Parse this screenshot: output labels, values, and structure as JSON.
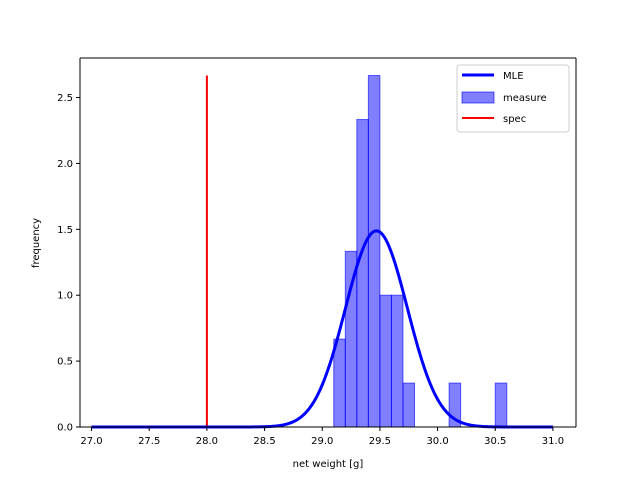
{
  "chart_data": {
    "type": "histogram",
    "title": "",
    "xlabel": "net weight [g]",
    "ylabel": "frequency",
    "xlim": [
      26.9,
      31.2
    ],
    "ylim": [
      0,
      2.8
    ],
    "xticks": [
      27.0,
      27.5,
      28.0,
      28.5,
      29.0,
      29.5,
      30.0,
      30.5,
      31.0
    ],
    "xtick_labels": [
      "27.0",
      "27.5",
      "28.0",
      "28.5",
      "29.0",
      "29.5",
      "30.0",
      "30.5",
      "31.0"
    ],
    "yticks": [
      0.0,
      0.5,
      1.0,
      1.5,
      2.0,
      2.5
    ],
    "ytick_labels": [
      "0.0",
      "0.5",
      "1.0",
      "1.5",
      "2.0",
      "2.5"
    ],
    "grid": false,
    "legend_position": "top-right",
    "series": [
      {
        "name": "MLE",
        "kind": "line",
        "color": "#0000ff",
        "distribution": "normal",
        "mean": 29.47,
        "std": 0.268,
        "x_range": [
          27.0,
          31.0
        ]
      },
      {
        "name": "measure",
        "kind": "histogram",
        "color": "#0000ff",
        "opacity": 0.5,
        "bins": [
          {
            "x0": 29.1,
            "x1": 29.2,
            "height": 0.667
          },
          {
            "x0": 29.2,
            "x1": 29.3,
            "height": 1.333
          },
          {
            "x0": 29.3,
            "x1": 29.4,
            "height": 2.333
          },
          {
            "x0": 29.4,
            "x1": 29.5,
            "height": 2.667
          },
          {
            "x0": 29.5,
            "x1": 29.6,
            "height": 1.0
          },
          {
            "x0": 29.6,
            "x1": 29.7,
            "height": 1.0
          },
          {
            "x0": 29.7,
            "x1": 29.8,
            "height": 0.333
          },
          {
            "x0": 30.1,
            "x1": 30.2,
            "height": 0.333
          },
          {
            "x0": 30.5,
            "x1": 30.6,
            "height": 0.333
          }
        ]
      },
      {
        "name": "spec",
        "kind": "vline",
        "color": "#ff0000",
        "x": 28.0,
        "y_range": [
          0,
          2.667
        ]
      }
    ]
  }
}
